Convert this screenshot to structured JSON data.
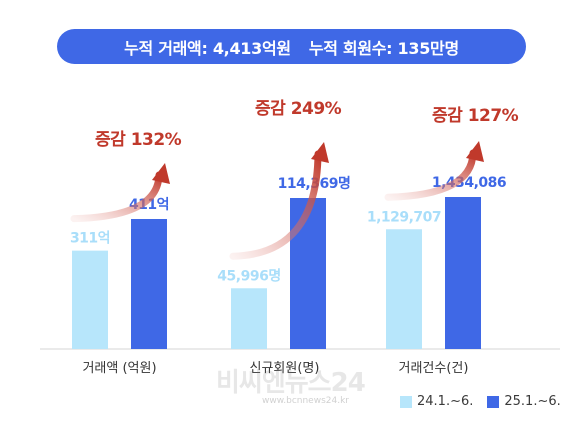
{
  "banner": {
    "part1": "누적 거래액: 4,413억원",
    "part2": "누적 회원수: 135만명"
  },
  "colors": {
    "banner": "#3f68e6",
    "series_2024": "#b7e6fb",
    "series_2025": "#3f68e6",
    "label_2024": "#a9defa",
    "label_2025": "#3f68e6",
    "increase": "#c0392b"
  },
  "chart_data": {
    "type": "bar",
    "categories": [
      "거래액 (억원)",
      "신규회원(명)",
      "거래건수(건)"
    ],
    "series": [
      {
        "name": "24.1.~6.",
        "values": [
          311,
          45996,
          1129707
        ],
        "labels": [
          "311억",
          "45,996명",
          "1,129,707"
        ]
      },
      {
        "name": "25.1.~6.",
        "values": [
          411,
          114369,
          1434086
        ],
        "labels": [
          "411억",
          "114,369명",
          "1,434,086"
        ]
      }
    ],
    "increase_labels": [
      "증감 132%",
      "증감 249%",
      "증감 127%"
    ],
    "legend_position": "bottom-right",
    "grid": false
  },
  "watermark": {
    "text": "비씨엔뉴스24",
    "url": "www.bcnnews24.kr"
  }
}
